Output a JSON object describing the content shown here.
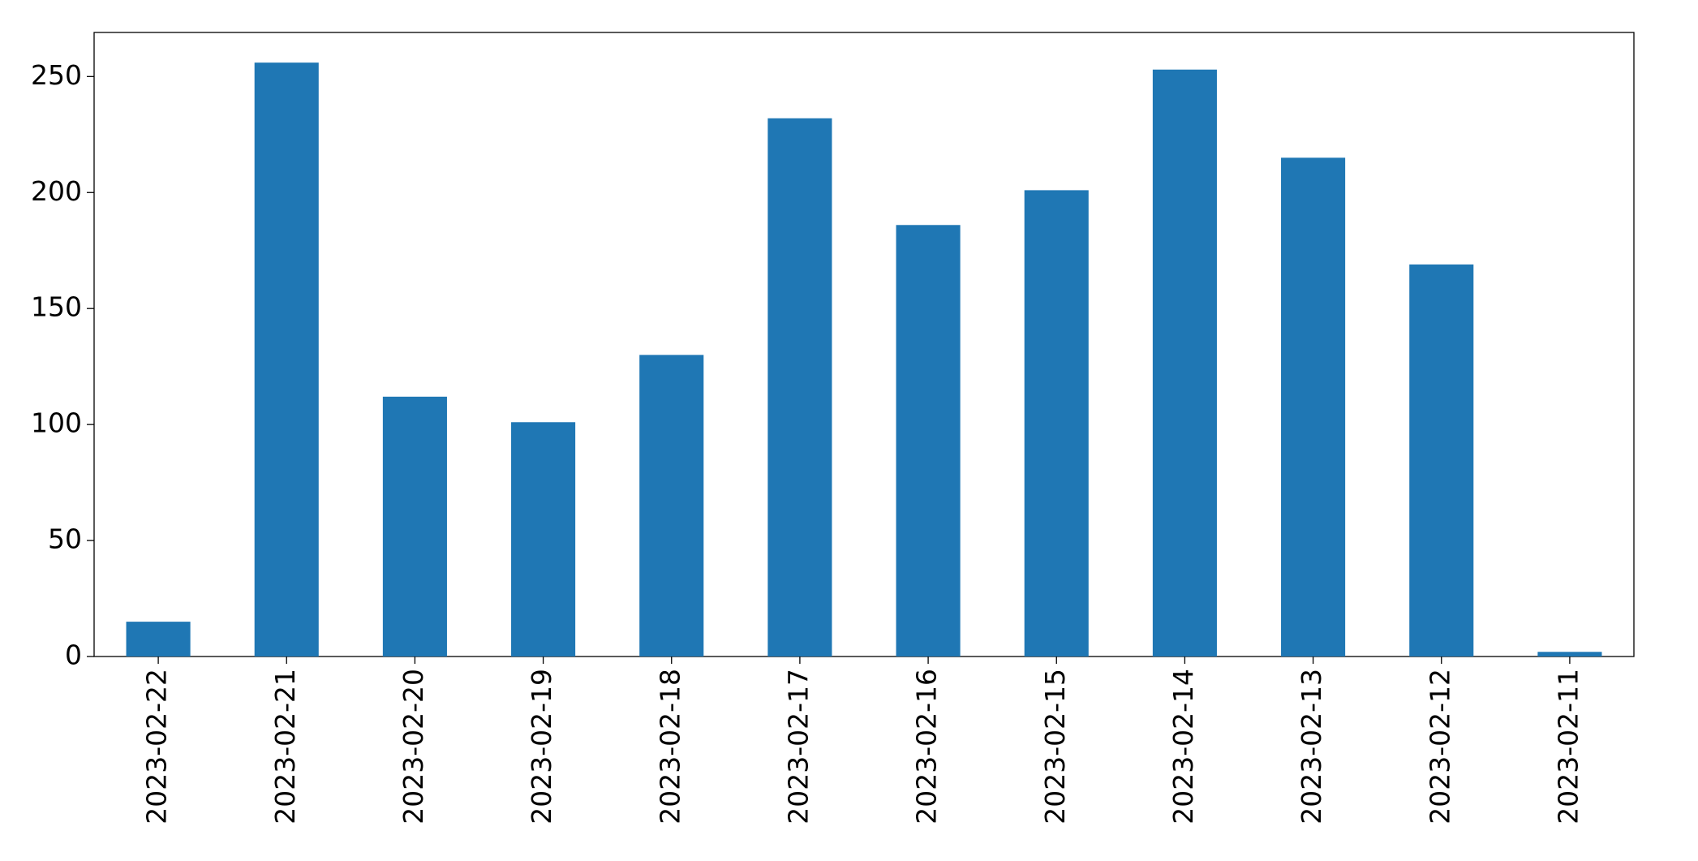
{
  "chart_data": {
    "type": "bar",
    "categories": [
      "2023-02-22",
      "2023-02-21",
      "2023-02-20",
      "2023-02-19",
      "2023-02-18",
      "2023-02-17",
      "2023-02-16",
      "2023-02-15",
      "2023-02-14",
      "2023-02-13",
      "2023-02-12",
      "2023-02-11"
    ],
    "values": [
      15,
      256,
      112,
      101,
      130,
      232,
      186,
      201,
      253,
      215,
      169,
      2
    ],
    "color": "#1f77b4",
    "ylim": [
      0,
      269
    ],
    "yticks": [
      0,
      50,
      100,
      150,
      200,
      250
    ],
    "grid": false
  }
}
